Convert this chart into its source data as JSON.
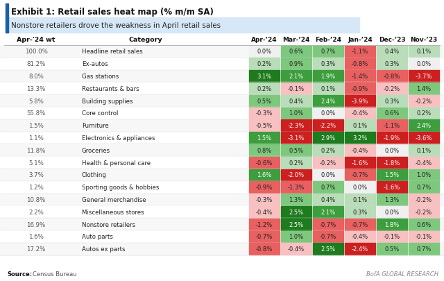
{
  "title": "Exhibit 1: Retail sales heat map (% m/m SA)",
  "subtitle": "Nonstore retailers drove the weakness in April retail sales",
  "source_bold": "Source:",
  "source_rest": " Census Bureau",
  "footer": "BofA GLOBAL RESEARCH",
  "col_headers": [
    "Apr-’24",
    "Mar-’24",
    "Feb-’24",
    "Jan-’24",
    "Dec-’23",
    "Nov-’23"
  ],
  "rows": [
    {
      "wt": "100.0%",
      "cat": "Headline retail sales",
      "vals": [
        0.0,
        0.6,
        0.7,
        -1.1,
        0.4,
        0.1
      ]
    },
    {
      "wt": "81.2%",
      "cat": "Ex-autos",
      "vals": [
        0.2,
        0.9,
        0.3,
        -0.8,
        0.3,
        0.0
      ]
    },
    {
      "wt": "8.0%",
      "cat": "Gas stations",
      "vals": [
        3.1,
        2.1,
        1.9,
        -1.4,
        -0.8,
        -3.7
      ]
    },
    {
      "wt": "13.3%",
      "cat": "Restaurants & bars",
      "vals": [
        0.2,
        -0.1,
        0.1,
        -0.9,
        -0.2,
        1.4
      ]
    },
    {
      "wt": "5.8%",
      "cat": "Building supplies",
      "vals": [
        0.5,
        0.4,
        2.4,
        -3.9,
        0.3,
        -0.2
      ]
    },
    {
      "wt": "55.8%",
      "cat": "Core control",
      "vals": [
        -0.3,
        1.0,
        0.0,
        -0.4,
        0.6,
        0.2
      ]
    },
    {
      "wt": "1.5%",
      "cat": "Furniture",
      "vals": [
        -0.5,
        -2.3,
        -2.2,
        0.1,
        -1.1,
        2.4
      ]
    },
    {
      "wt": "1.1%",
      "cat": "Electronics & appliances",
      "vals": [
        1.5,
        -3.1,
        2.9,
        3.2,
        -1.9,
        -3.6
      ]
    },
    {
      "wt": "11.8%",
      "cat": "Groceries",
      "vals": [
        0.8,
        0.5,
        0.2,
        -0.4,
        0.0,
        0.1
      ]
    },
    {
      "wt": "5.1%",
      "cat": "Health & personal care",
      "vals": [
        -0.6,
        0.2,
        -0.2,
        -1.6,
        -1.8,
        -0.4
      ]
    },
    {
      "wt": "3.7%",
      "cat": "Clothing",
      "vals": [
        1.6,
        -2.0,
        0.0,
        -0.7,
        1.5,
        1.0
      ]
    },
    {
      "wt": "1.2%",
      "cat": "Sporting goods & hobbies",
      "vals": [
        -0.9,
        -1.3,
        0.7,
        0.0,
        -1.6,
        0.7
      ]
    },
    {
      "wt": "10.8%",
      "cat": "General merchandise",
      "vals": [
        -0.3,
        1.3,
        0.4,
        0.1,
        1.3,
        -0.2
      ]
    },
    {
      "wt": "2.2%",
      "cat": "Miscellaneous stores",
      "vals": [
        -0.4,
        2.5,
        2.1,
        0.3,
        0.0,
        -0.2
      ]
    },
    {
      "wt": "16.9%",
      "cat": "Nonstore retailers",
      "vals": [
        -1.2,
        2.5,
        -0.7,
        -0.7,
        1.8,
        0.6
      ]
    },
    {
      "wt": "1.6%",
      "cat": "Auto parts",
      "vals": [
        -0.7,
        1.0,
        -0.7,
        -0.4,
        -0.1,
        -0.1
      ]
    },
    {
      "wt": "17.2%",
      "cat": "Autos ex parts",
      "vals": [
        -0.8,
        -0.4,
        2.5,
        -2.4,
        0.5,
        0.7
      ]
    }
  ],
  "bg_color": "#ffffff",
  "title_bar_color": "#1a5fa8",
  "subtitle_bg": "#d6e8f7",
  "header_text_color": "#111111",
  "wt_text_color": "#555555",
  "cat_text_color": "#222222"
}
